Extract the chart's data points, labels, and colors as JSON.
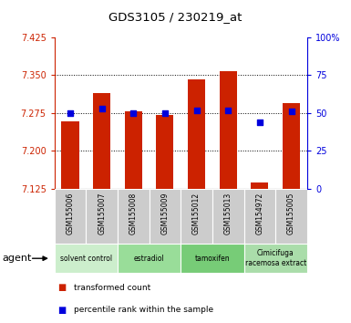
{
  "title": "GDS3105 / 230219_at",
  "samples": [
    "GSM155006",
    "GSM155007",
    "GSM155008",
    "GSM155009",
    "GSM155012",
    "GSM155013",
    "GSM154972",
    "GSM155005"
  ],
  "red_values": [
    7.258,
    7.315,
    7.278,
    7.272,
    7.342,
    7.358,
    7.138,
    7.295
  ],
  "blue_values": [
    50,
    53,
    50,
    50,
    52,
    52,
    44,
    51
  ],
  "ylim_left": [
    7.125,
    7.425
  ],
  "ylim_right": [
    0,
    100
  ],
  "yticks_left": [
    7.125,
    7.2,
    7.275,
    7.35,
    7.425
  ],
  "yticks_right": [
    0,
    25,
    50,
    75,
    100
  ],
  "ytick_labels_right": [
    "0",
    "25",
    "50",
    "75",
    "100%"
  ],
  "hlines": [
    7.2,
    7.275,
    7.35
  ],
  "bar_color": "#cc2200",
  "dot_color": "#0000dd",
  "groups": [
    {
      "label": "solvent control",
      "samples": [
        0,
        1
      ],
      "color": "#cceecc"
    },
    {
      "label": "estradiol",
      "samples": [
        2,
        3
      ],
      "color": "#99dd99"
    },
    {
      "label": "tamoxifen",
      "samples": [
        4,
        5
      ],
      "color": "#77cc77"
    },
    {
      "label": "Cimicifuga\nracemosa extract",
      "samples": [
        6,
        7
      ],
      "color": "#aaddaa"
    }
  ],
  "legend_red": "transformed count",
  "legend_blue": "percentile rank within the sample",
  "agent_label": "agent",
  "bar_width": 0.55
}
